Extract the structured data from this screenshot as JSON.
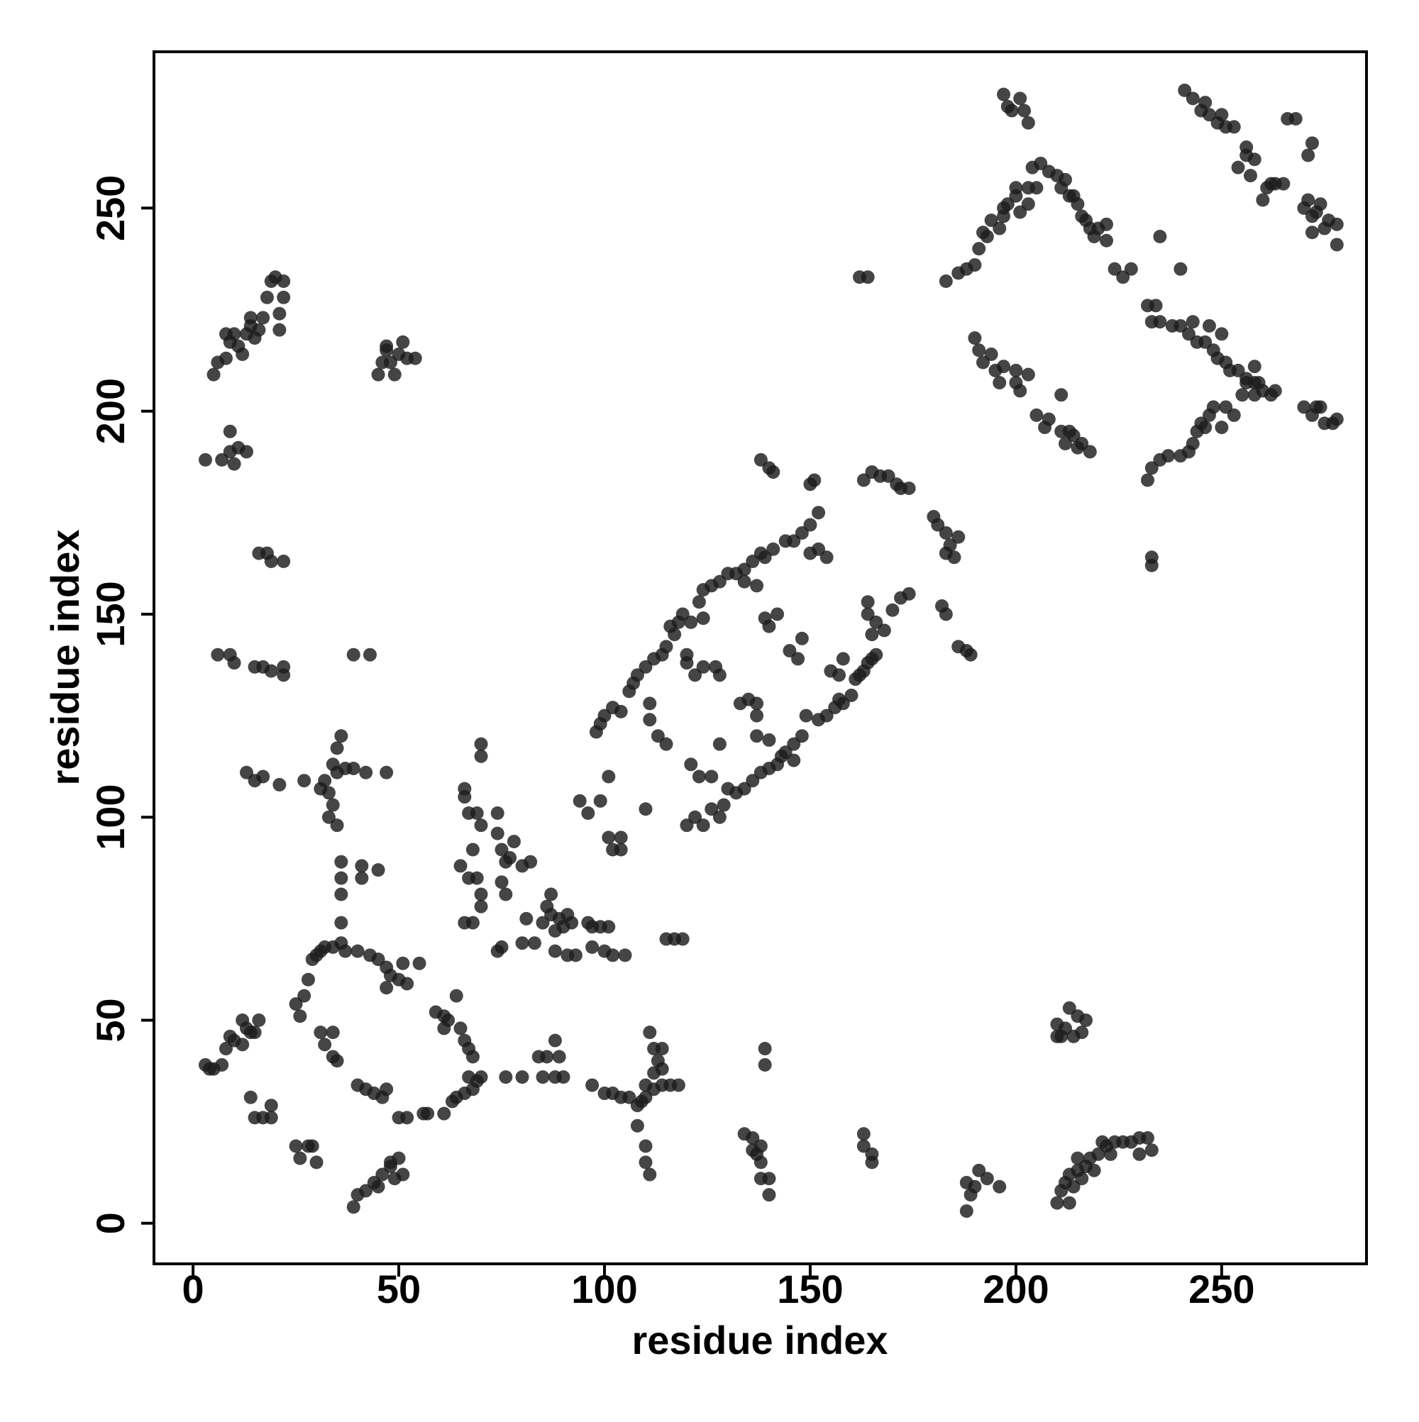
{
  "chart_data": {
    "type": "scatter",
    "x_label": "residue index",
    "y_label": "residue index",
    "xlim": [
      -9.5,
      285.2
    ],
    "ylim": [
      -10,
      288.5
    ],
    "xticks": [
      0,
      50,
      100,
      150,
      200,
      250
    ],
    "yticks": [
      0,
      50,
      100,
      150,
      200,
      250
    ],
    "grid": false,
    "color": "#1c1c1c",
    "x": [
      3,
      4,
      5,
      7,
      8,
      9,
      10,
      12,
      13,
      14,
      12,
      15,
      16,
      14,
      15,
      17,
      19,
      19,
      25,
      26,
      28,
      30,
      29,
      25,
      27,
      26,
      28,
      29,
      30,
      31,
      32,
      34,
      36,
      37,
      40,
      43,
      45,
      47,
      48,
      50,
      52,
      51,
      55,
      47,
      31,
      32,
      34,
      34,
      35,
      40,
      42,
      44,
      47,
      46,
      50,
      52,
      56,
      57,
      61,
      59,
      61,
      62,
      61,
      64,
      65,
      66,
      67,
      68,
      67,
      69,
      70,
      66,
      64,
      63,
      68,
      39,
      40,
      42,
      44,
      45,
      46,
      48,
      49,
      50,
      51,
      48,
      35,
      37,
      39,
      42,
      47,
      32,
      31,
      33,
      34,
      33,
      35,
      34,
      35,
      36,
      27,
      13,
      15,
      17,
      21,
      36,
      36,
      36,
      41,
      41,
      45,
      36,
      39,
      43,
      6,
      9,
      10,
      15,
      17,
      19,
      22,
      22,
      16,
      18,
      19,
      22,
      3,
      7,
      9,
      9,
      10,
      11,
      13,
      5,
      6,
      8,
      9,
      10,
      11,
      12,
      13,
      14,
      15,
      16,
      17,
      18,
      19,
      20,
      21,
      21,
      22,
      22,
      14,
      8,
      45,
      46,
      47,
      48,
      49,
      50,
      51,
      52,
      54,
      47,
      66,
      66,
      67,
      69,
      70,
      68,
      65,
      67,
      69,
      70,
      70,
      66,
      68,
      70,
      70,
      74,
      74,
      75,
      76,
      77,
      75,
      76,
      78,
      80,
      82,
      74,
      75,
      76,
      81,
      83,
      85,
      86,
      87,
      88,
      89,
      90,
      91,
      92,
      88,
      91,
      93,
      96,
      97,
      99,
      101,
      97,
      100,
      102,
      105,
      87,
      80,
      94,
      96,
      99,
      101,
      102,
      104,
      104,
      101,
      110,
      98,
      99,
      100,
      102,
      104,
      106,
      107,
      108,
      110,
      112,
      114,
      115,
      116,
      117,
      118,
      119,
      121,
      123,
      124,
      126,
      128,
      130,
      132,
      134,
      136,
      138,
      139,
      141,
      144,
      146,
      148,
      150,
      152,
      150,
      152,
      154,
      150,
      151,
      111,
      111,
      113,
      115,
      120,
      120,
      122,
      124,
      127,
      128,
      124,
      120,
      122,
      124,
      126,
      128,
      129,
      130,
      132,
      134,
      136,
      138,
      140,
      142,
      144,
      146,
      148,
      149,
      152,
      154,
      156,
      157,
      158,
      160,
      161,
      162,
      163,
      164,
      165,
      166,
      143,
      140,
      137,
      146,
      121,
      123,
      126,
      128,
      135,
      137,
      137,
      133,
      134,
      137,
      139,
      140,
      142,
      145,
      147,
      148,
      155,
      157,
      158,
      164,
      164,
      166,
      168,
      170,
      172,
      174,
      165,
      163,
      165,
      167,
      169,
      171,
      172,
      174,
      138,
      140,
      141,
      180,
      181,
      183,
      184,
      183,
      186,
      185,
      182,
      183,
      186,
      188,
      189,
      97,
      100,
      102,
      104,
      106,
      108,
      110,
      110,
      112,
      114,
      116,
      118,
      109,
      108,
      110,
      110,
      111,
      111,
      112,
      113,
      112,
      114,
      114,
      115,
      117,
      119,
      80,
      84,
      86,
      85,
      88,
      89,
      90,
      88,
      134,
      136,
      136,
      137,
      138,
      138,
      140,
      140,
      138,
      139,
      139,
      163,
      163,
      165,
      165,
      188,
      189,
      190,
      191,
      193,
      196,
      188,
      210,
      211,
      212,
      213,
      214,
      215,
      216,
      217,
      218,
      219,
      220,
      221,
      222,
      223,
      224,
      226,
      228,
      230,
      232,
      233,
      230,
      213,
      215,
      210,
      211,
      212,
      213,
      214,
      215,
      216,
      217,
      210,
      162,
      164,
      183,
      186,
      188,
      190,
      191,
      192,
      193,
      194,
      196,
      197,
      198,
      200,
      201,
      203,
      204,
      206,
      208,
      210,
      211,
      212,
      213,
      214,
      215,
      216,
      217,
      218,
      219,
      220,
      222,
      222,
      224,
      226,
      228,
      232,
      234,
      233,
      235,
      238,
      240,
      242,
      243,
      244,
      246,
      247,
      248,
      249,
      250,
      251,
      252,
      254,
      256,
      258,
      259,
      260,
      262,
      263,
      240,
      235,
      197,
      198,
      199,
      201,
      202,
      203,
      197,
      200,
      203,
      205,
      190,
      191,
      192,
      194,
      195,
      196,
      197,
      200,
      201,
      200,
      203,
      205,
      207,
      208,
      211,
      212,
      213,
      214,
      215,
      216,
      218,
      211,
      232,
      233,
      235,
      237,
      240,
      242,
      243,
      244,
      245,
      246,
      247,
      248,
      250,
      251,
      253,
      255,
      256,
      233,
      233,
      241,
      243,
      245,
      246,
      247,
      249,
      250,
      251,
      253,
      254,
      256,
      256,
      258,
      257,
      260,
      261,
      262,
      263,
      265,
      266,
      268,
      270,
      271,
      272,
      273,
      274,
      275,
      276,
      278,
      278,
      272,
      271,
      272,
      270,
      272,
      273,
      274,
      275,
      277,
      278,
      258,
      258
    ],
    "values": [
      39,
      38,
      38,
      39,
      43,
      46,
      45,
      44,
      48,
      47,
      50,
      47,
      50,
      31,
      26,
      26,
      29,
      26,
      19,
      16,
      19,
      15,
      19,
      54,
      56,
      51,
      60,
      65,
      66,
      67,
      68,
      68,
      69,
      67,
      67,
      66,
      65,
      63,
      61,
      60,
      59,
      64,
      64,
      58,
      47,
      44,
      47,
      41,
      40,
      34,
      33,
      32,
      33,
      31,
      26,
      26,
      27,
      27,
      27,
      52,
      51,
      50,
      48,
      56,
      48,
      45,
      43,
      41,
      36,
      35,
      36,
      32,
      31,
      30,
      33,
      4,
      7,
      8,
      10,
      9,
      12,
      14,
      11,
      16,
      12,
      15,
      111,
      112,
      112,
      111,
      111,
      109,
      107,
      106,
      103,
      100,
      98,
      113,
      117,
      120,
      109,
      111,
      109,
      110,
      108,
      89,
      85,
      81,
      88,
      85,
      87,
      74,
      140,
      140,
      140,
      140,
      138,
      137,
      137,
      136,
      135,
      137,
      165,
      165,
      163,
      163,
      188,
      188,
      190,
      195,
      187,
      191,
      190,
      209,
      212,
      213,
      217,
      219,
      216,
      214,
      219,
      221,
      218,
      220,
      223,
      228,
      232,
      233,
      220,
      224,
      228,
      232,
      223,
      219,
      209,
      212,
      215,
      212,
      209,
      214,
      217,
      213,
      213,
      216,
      107,
      105,
      101,
      101,
      98,
      92,
      88,
      85,
      85,
      81,
      78,
      74,
      74,
      115,
      118,
      101,
      96,
      92,
      89,
      90,
      84,
      81,
      94,
      88,
      89,
      67,
      68,
      36,
      75,
      69,
      74,
      78,
      76,
      72,
      75,
      73,
      76,
      74,
      67,
      66,
      66,
      74,
      73,
      73,
      73,
      68,
      67,
      66,
      66,
      81,
      69,
      104,
      101,
      104,
      95,
      92,
      95,
      92,
      110,
      102,
      121,
      123,
      125,
      127,
      126,
      131,
      133,
      135,
      137,
      139,
      140,
      142,
      147,
      145,
      148,
      150,
      148,
      153,
      156,
      157,
      158,
      160,
      160,
      161,
      163,
      165,
      164,
      166,
      168,
      168,
      170,
      172,
      175,
      165,
      166,
      164,
      182,
      183,
      128,
      124,
      120,
      118,
      138,
      140,
      135,
      137,
      137,
      135,
      149,
      98,
      100,
      98,
      102,
      100,
      103,
      107,
      106,
      107,
      109,
      111,
      112,
      113,
      116,
      118,
      120,
      125,
      124,
      125,
      127,
      129,
      128,
      130,
      134,
      135,
      136,
      138,
      139,
      140,
      115,
      119,
      120,
      114,
      113,
      110,
      110,
      118,
      129,
      128,
      125,
      128,
      158,
      157,
      149,
      147,
      150,
      141,
      139,
      144,
      136,
      135,
      139,
      150,
      153,
      148,
      146,
      151,
      154,
      155,
      145,
      183,
      185,
      184,
      184,
      182,
      181,
      181,
      188,
      186,
      185,
      174,
      172,
      170,
      167,
      165,
      169,
      164,
      152,
      150,
      142,
      141,
      140,
      34,
      32,
      32,
      31,
      31,
      29,
      31,
      34,
      33,
      34,
      34,
      34,
      30,
      24,
      19,
      15,
      12,
      47,
      43,
      40,
      37,
      38,
      43,
      70,
      70,
      70,
      36,
      41,
      41,
      36,
      45,
      41,
      36,
      36,
      22,
      21,
      18,
      17,
      15,
      11,
      11,
      7,
      19,
      39,
      43,
      22,
      19,
      17,
      15,
      10,
      7,
      9,
      13,
      11,
      9,
      3,
      5,
      8,
      10,
      12,
      9,
      13,
      11,
      14,
      16,
      13,
      17,
      20,
      19,
      17,
      20,
      20,
      20,
      21,
      21,
      18,
      17,
      5,
      16,
      49,
      46,
      48,
      53,
      46,
      51,
      47,
      50,
      46,
      233,
      233,
      232,
      234,
      235,
      236,
      240,
      244,
      243,
      247,
      245,
      248,
      251,
      253,
      249,
      255,
      260,
      261,
      259,
      258,
      255,
      257,
      253,
      253,
      251,
      248,
      247,
      245,
      243,
      245,
      246,
      242,
      235,
      233,
      235,
      226,
      226,
      222,
      222,
      221,
      221,
      219,
      222,
      217,
      217,
      221,
      215,
      213,
      219,
      212,
      210,
      210,
      208,
      211,
      207,
      205,
      204,
      205,
      235,
      243,
      278,
      275,
      274,
      277,
      274,
      271,
      250,
      255,
      251,
      255,
      218,
      215,
      212,
      214,
      210,
      207,
      211,
      210,
      205,
      207,
      209,
      199,
      196,
      198,
      195,
      192,
      195,
      194,
      191,
      192,
      190,
      204,
      183,
      186,
      188,
      189,
      189,
      190,
      192,
      195,
      197,
      196,
      199,
      201,
      196,
      201,
      199,
      204,
      207,
      164,
      162,
      279,
      277,
      274,
      276,
      273,
      271,
      273,
      270,
      270,
      260,
      263,
      265,
      262,
      258,
      252,
      255,
      256,
      256,
      256,
      272,
      272,
      250,
      252,
      248,
      249,
      251,
      245,
      247,
      246,
      241,
      244,
      263,
      266,
      201,
      199,
      201,
      201,
      197,
      197,
      198,
      207,
      204
    ]
  }
}
